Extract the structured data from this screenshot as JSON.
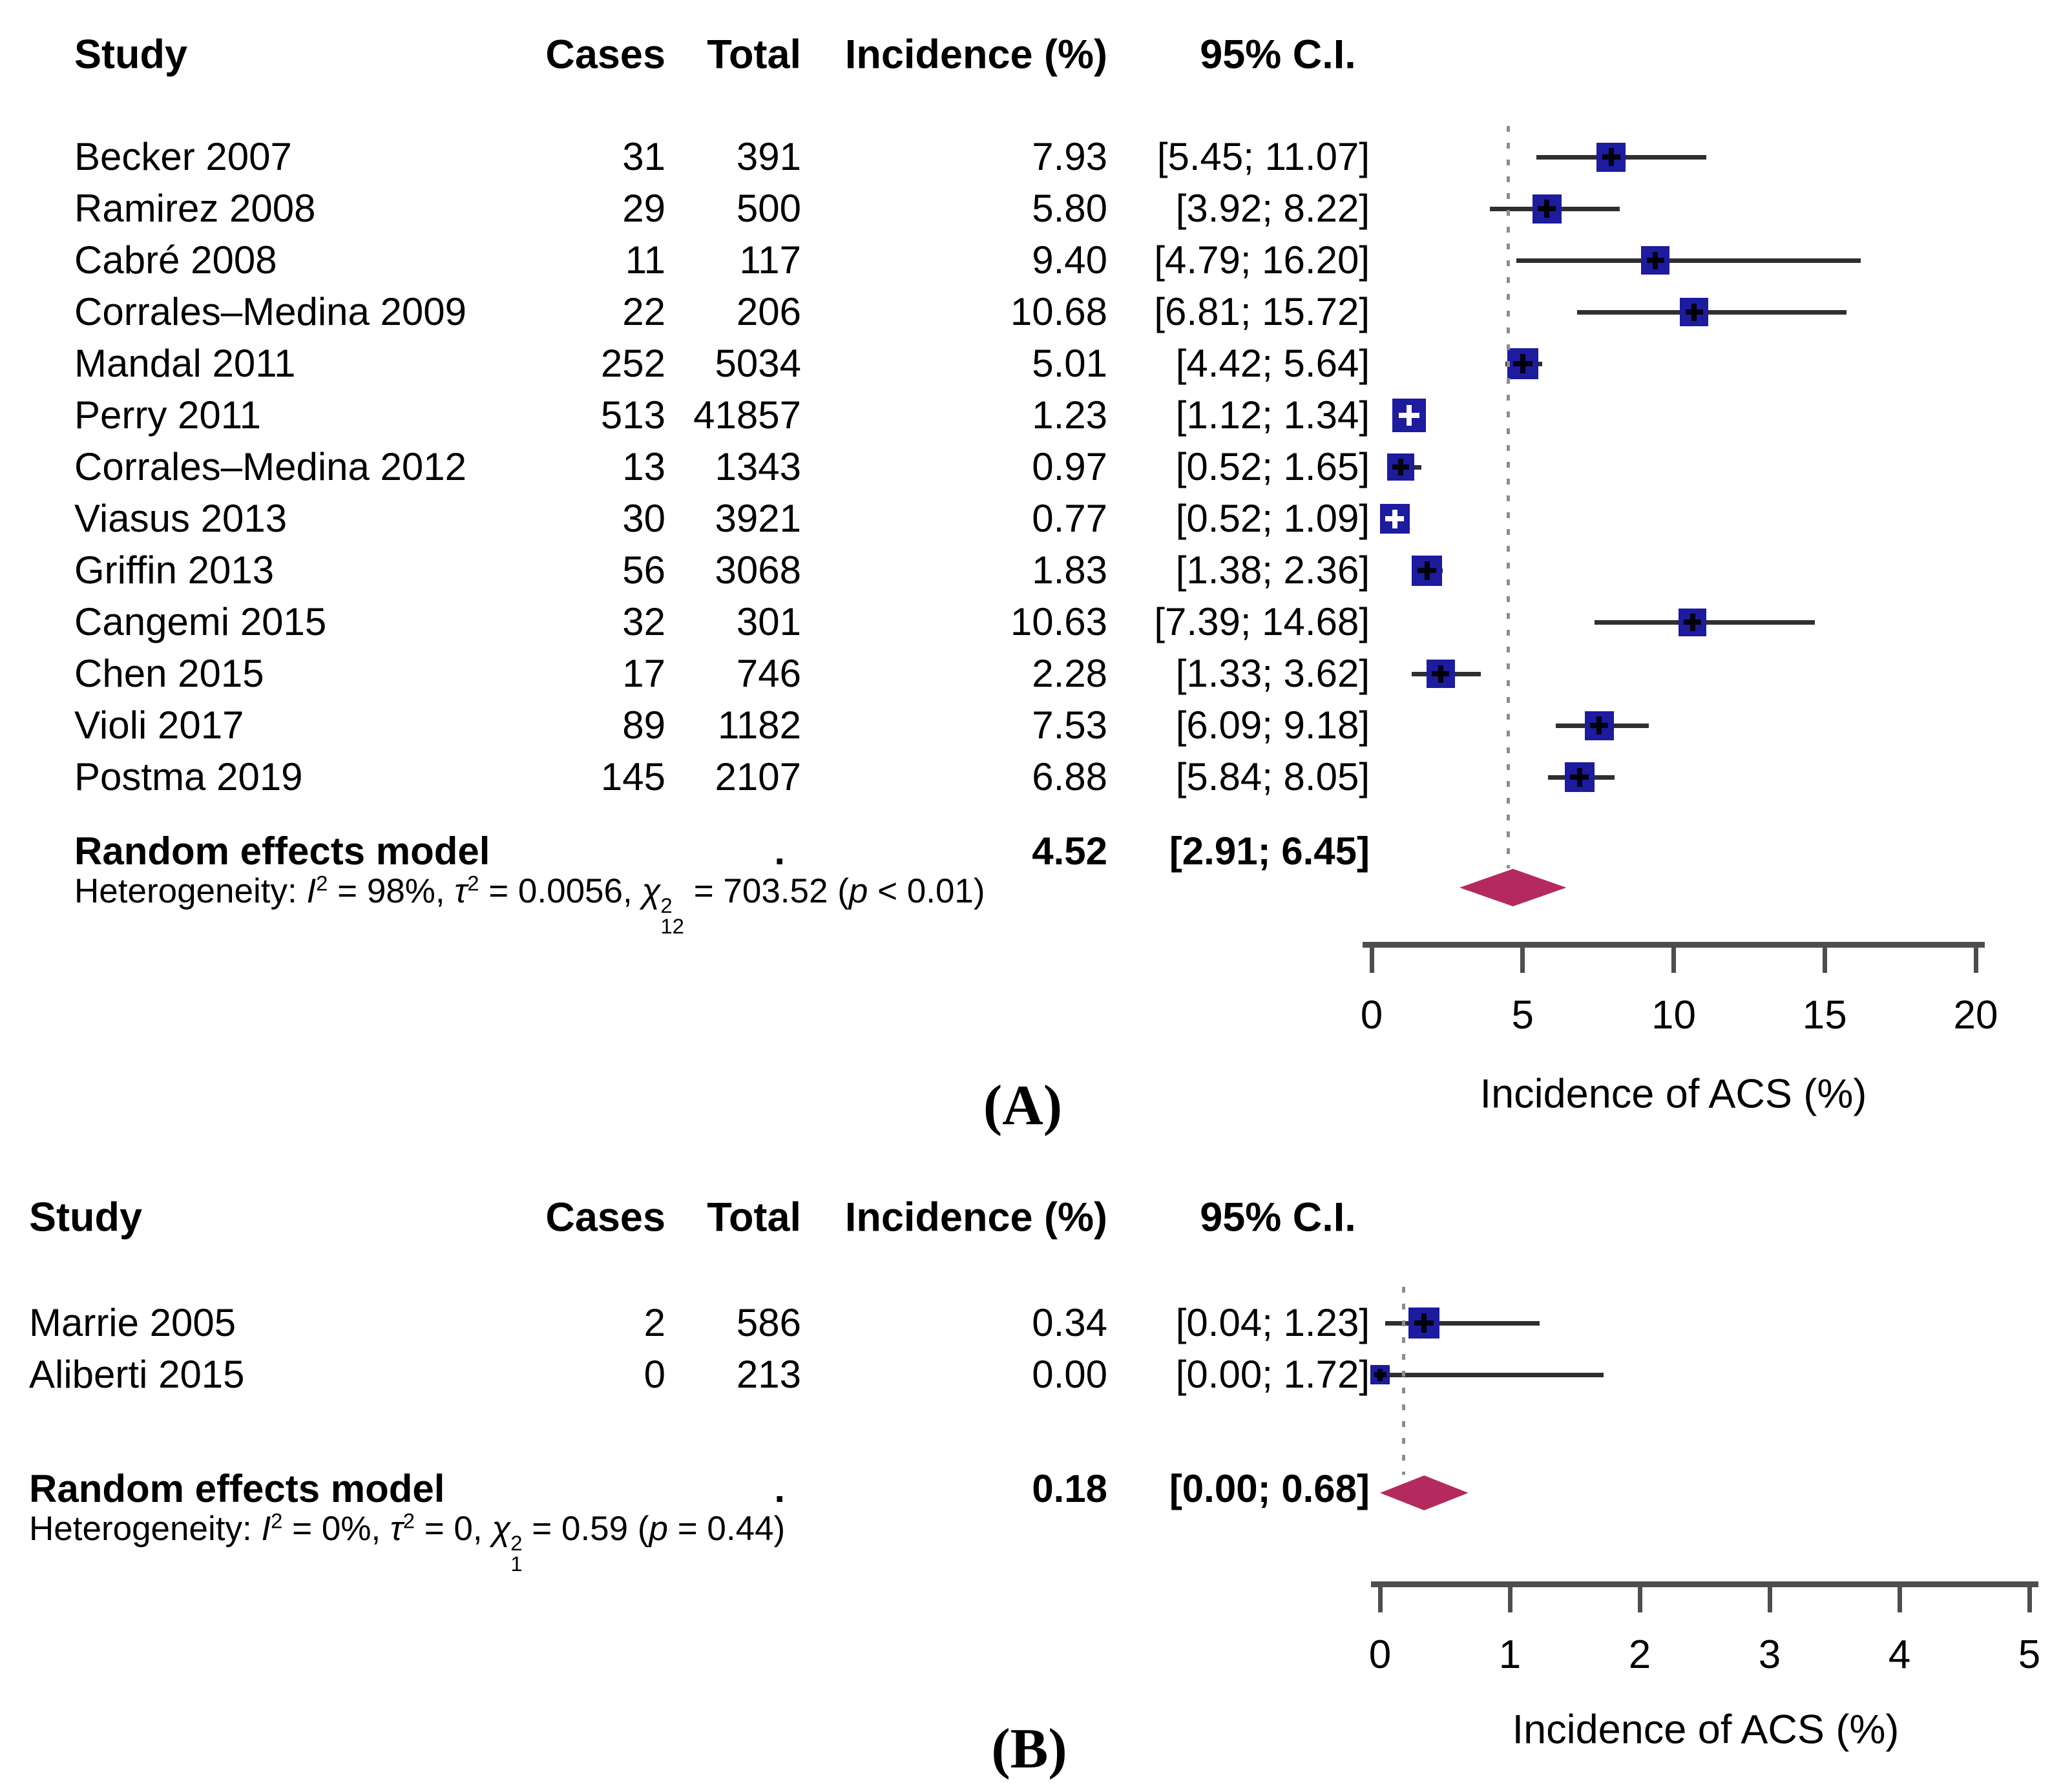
{
  "colors": {
    "square": "#1d1b9e",
    "diamond": "#b42a5e",
    "ci_line": "#2f2f2f",
    "axis": "#4e4e4e",
    "ref_line": "#8c8c8c",
    "text": "#000000"
  },
  "chart_data": [
    {
      "panel_label": "(A)",
      "type": "forest",
      "columns": {
        "study": "Study",
        "cases": "Cases",
        "total": "Total",
        "incidence": "Incidence (%)",
        "ci": "95% C.I."
      },
      "studies": [
        {
          "name": "Becker 2007",
          "cases": "31",
          "total": "391",
          "incidence": "7.93",
          "ci": "[5.45; 11.07]",
          "est": 7.93,
          "lo": 5.45,
          "hi": 11.07,
          "marker_px": 45
        },
        {
          "name": "Ramirez 2008",
          "cases": "29",
          "total": "500",
          "incidence": "5.80",
          "ci": "[3.92;  8.22]",
          "est": 5.8,
          "lo": 3.92,
          "hi": 8.22,
          "marker_px": 45
        },
        {
          "name": "Cabré 2008",
          "cases": "11",
          "total": "117",
          "incidence": "9.40",
          "ci": "[4.79; 16.20]",
          "est": 9.4,
          "lo": 4.79,
          "hi": 16.2,
          "marker_px": 44
        },
        {
          "name": "Corrales–Medina 2009",
          "cases": "22",
          "total": "206",
          "incidence": "10.68",
          "ci": "[6.81; 15.72]",
          "est": 10.68,
          "lo": 6.81,
          "hi": 15.72,
          "marker_px": 44
        },
        {
          "name": "Mandal 2011",
          "cases": "252",
          "total": "5034",
          "incidence": "5.01",
          "ci": "[4.42;  5.64]",
          "est": 5.01,
          "lo": 4.42,
          "hi": 5.64,
          "marker_px": 48
        },
        {
          "name": "Perry 2011",
          "cases": "513",
          "total": "41857",
          "incidence": "1.23",
          "ci": "[1.12;  1.34]",
          "est": 1.23,
          "lo": 1.12,
          "hi": 1.34,
          "marker_px": 52
        },
        {
          "name": "Corrales–Medina 2012",
          "cases": "13",
          "total": "1343",
          "incidence": "0.97",
          "ci": "[0.52;  1.65]",
          "est": 0.97,
          "lo": 0.52,
          "hi": 1.65,
          "marker_px": 42
        },
        {
          "name": "Viasus 2013",
          "cases": "30",
          "total": "3921",
          "incidence": "0.77",
          "ci": "[0.52;  1.09]",
          "est": 0.77,
          "lo": 0.52,
          "hi": 1.09,
          "marker_px": 46
        },
        {
          "name": "Griffin 2013",
          "cases": "56",
          "total": "3068",
          "incidence": "1.83",
          "ci": "[1.38;  2.36]",
          "est": 1.83,
          "lo": 1.38,
          "hi": 2.36,
          "marker_px": 47
        },
        {
          "name": "Cangemi 2015",
          "cases": "32",
          "total": "301",
          "incidence": "10.63",
          "ci": "[7.39; 14.68]",
          "est": 10.63,
          "lo": 7.39,
          "hi": 14.68,
          "marker_px": 43
        },
        {
          "name": "Chen 2015",
          "cases": "17",
          "total": "746",
          "incidence": "2.28",
          "ci": "[1.33;  3.62]",
          "est": 2.28,
          "lo": 1.33,
          "hi": 3.62,
          "marker_px": 44
        },
        {
          "name": "Violi 2017",
          "cases": "89",
          "total": "1182",
          "incidence": "7.53",
          "ci": "[6.09;  9.18]",
          "est": 7.53,
          "lo": 6.09,
          "hi": 9.18,
          "marker_px": 45
        },
        {
          "name": "Postma 2019",
          "cases": "145",
          "total": "2107",
          "incidence": "6.88",
          "ci": "[5.84;  8.05]",
          "est": 6.88,
          "lo": 5.84,
          "hi": 8.05,
          "marker_px": 46
        }
      ],
      "pooled": {
        "name": "Random effects model",
        "total_dot": ".",
        "incidence": "4.52",
        "ci": "[2.91; 6.45]",
        "est": 4.52,
        "lo": 2.91,
        "hi": 6.45
      },
      "heterogeneity": {
        "label": "Heterogeneity: ",
        "i_sym": "I",
        "i_sup": "2",
        "i_eq": " = 98%, ",
        "tau_sym": "τ",
        "tau_sup": "2",
        "tau_eq": " = 0.0056, ",
        "chi_sym": "χ",
        "chi_sup": "2",
        "chi_sub": "12",
        "chi_eq": " = 703.52 ",
        "p_open": "(",
        "p_sym": "p",
        "p_rest": " < 0.01)"
      },
      "axis": {
        "ticks": [
          0,
          5,
          10,
          15,
          20
        ],
        "min": 0,
        "max": 20,
        "title": "Incidence of ACS (%)",
        "ref_value": 4.52
      }
    },
    {
      "panel_label": "(B)",
      "type": "forest",
      "columns": {
        "study": "Study",
        "cases": "Cases",
        "total": "Total",
        "incidence": "Incidence (%)",
        "ci": "95% C.I."
      },
      "studies": [
        {
          "name": "Marrie 2005",
          "cases": "2",
          "total": "586",
          "incidence": "0.34",
          "ci": "[0.04; 1.23]",
          "est": 0.34,
          "lo": 0.04,
          "hi": 1.23,
          "marker_px": 48
        },
        {
          "name": "Aliberti 2015",
          "cases": "0",
          "total": "213",
          "incidence": "0.00",
          "ci": "[0.00; 1.72]",
          "est": 0.0,
          "lo": 0.0,
          "hi": 1.72,
          "marker_px": 30
        }
      ],
      "pooled": {
        "name": "Random effects model",
        "total_dot": ".",
        "incidence": "0.18",
        "ci": "[0.00; 0.68]",
        "est": 0.18,
        "lo": 0.0,
        "hi": 0.68
      },
      "heterogeneity": {
        "label": "Heterogeneity: ",
        "i_sym": "I",
        "i_sup": "2",
        "i_eq": " = 0%, ",
        "tau_sym": "τ",
        "tau_sup": "2",
        "tau_eq": " = 0, ",
        "chi_sym": "χ",
        "chi_sup": "2",
        "chi_sub": "1",
        "chi_eq": " = 0.59 ",
        "p_open": "(",
        "p_sym": "p",
        "p_rest": " = 0.44)"
      },
      "axis": {
        "ticks": [
          0,
          1,
          2,
          3,
          4,
          5
        ],
        "min": 0,
        "max": 5,
        "title": "Incidence of ACS (%)",
        "ref_value": 0.18
      }
    }
  ]
}
